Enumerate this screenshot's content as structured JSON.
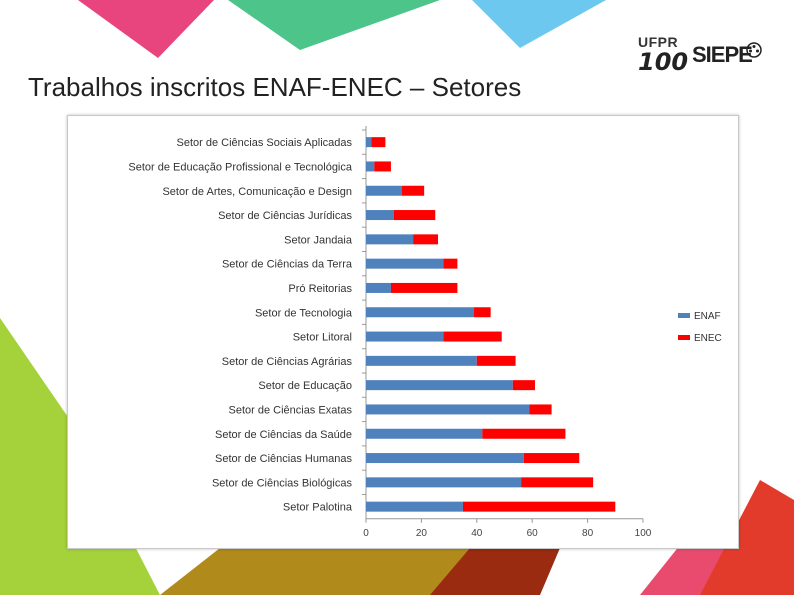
{
  "slide": {
    "title": "Trabalhos inscritos ENAF-ENEC – Setores"
  },
  "logo": {
    "ufpr": "UFPR",
    "hundred": "100",
    "siepe": "SIEPE"
  },
  "colors": {
    "enaf": "#4f81bd",
    "enec": "#ff0000",
    "shape_pink": "#e8457e",
    "shape_green": "#4cc48a",
    "shape_blue": "#6cc8ee",
    "shape_lime": "#a5d23a",
    "shape_olive": "#9a8a1a",
    "shape_red": "#e33b2b",
    "shape_rose": "#e84b6e"
  },
  "chart_data": {
    "type": "bar",
    "orientation": "horizontal",
    "stacked": true,
    "categories": [
      "Setor de Ciências Sociais Aplicadas",
      "Setor de Educação Profissional e Tecnológica",
      "Setor de Artes, Comunicação e Design",
      "Setor de Ciências Jurídicas",
      "Setor Jandaia",
      "Setor de Ciências da Terra",
      "Pró Reitorias",
      "Setor de Tecnologia",
      "Setor Litoral",
      "Setor de Ciências Agrárias",
      "Setor de Educação",
      "Setor de Ciências Exatas",
      "Setor de Ciências da Saúde",
      "Setor de Ciências Humanas",
      "Setor de Ciências Biológicas",
      "Setor Palotina"
    ],
    "series": [
      {
        "name": "ENAF",
        "values": [
          2,
          3,
          13,
          10,
          17,
          28,
          9,
          39,
          28,
          40,
          53,
          59,
          42,
          57,
          56,
          35
        ]
      },
      {
        "name": "ENEC",
        "values": [
          5,
          6,
          8,
          15,
          9,
          5,
          24,
          6,
          21,
          14,
          8,
          8,
          30,
          20,
          26,
          55
        ]
      }
    ],
    "xlim": [
      0,
      100
    ],
    "xticks": [
      "0",
      "20",
      "40",
      "60",
      "80",
      "100"
    ],
    "legend": [
      "ENAF",
      "ENEC"
    ],
    "legend_position": "right",
    "title": "",
    "xlabel": "",
    "ylabel": ""
  }
}
